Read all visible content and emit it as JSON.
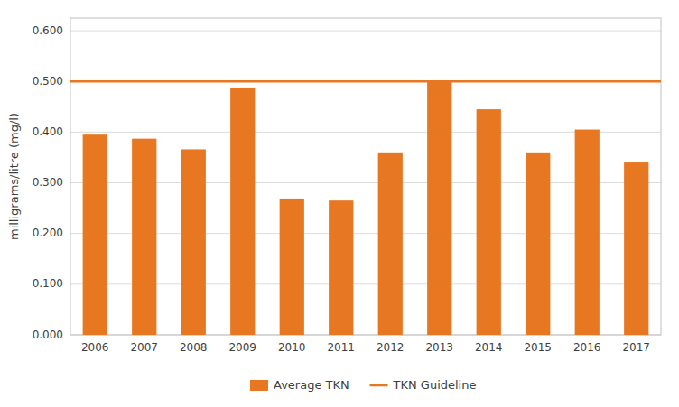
{
  "chart_data": {
    "type": "bar",
    "y_label": "milligrams/litre (mg/l)",
    "categories": [
      "2006",
      "2007",
      "2008",
      "2009",
      "2010",
      "2011",
      "2012",
      "2013",
      "2014",
      "2015",
      "2016",
      "2017"
    ],
    "series": [
      {
        "name": "Average TKN",
        "type": "bar",
        "color": "#E87722",
        "values": [
          0.395,
          0.387,
          0.366,
          0.488,
          0.269,
          0.265,
          0.36,
          0.5,
          0.445,
          0.36,
          0.405,
          0.34
        ]
      }
    ],
    "guideline": {
      "name": "TKN Guideline",
      "type": "line",
      "color": "#E87722",
      "value": 0.5
    },
    "ylim": [
      0.0,
      0.625
    ],
    "yticks": [
      {
        "value": 0.0,
        "label": "0.000"
      },
      {
        "value": 0.1,
        "label": "0.100"
      },
      {
        "value": 0.2,
        "label": "0.200"
      },
      {
        "value": 0.3,
        "label": "0.300"
      },
      {
        "value": 0.4,
        "label": "0.400"
      },
      {
        "value": 0.5,
        "label": "0.500"
      },
      {
        "value": 0.6,
        "label": "0.600"
      }
    ],
    "grid": true,
    "legend": "bottom"
  }
}
